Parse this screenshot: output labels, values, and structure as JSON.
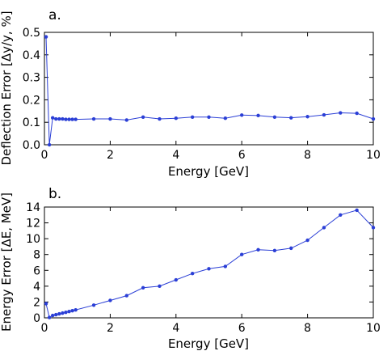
{
  "colors": {
    "series": "#2b3fd6",
    "axes": "#000000"
  },
  "chart_data": [
    {
      "type": "line",
      "panel_label": "a.",
      "xlabel": "Energy [GeV]",
      "ylabel": "Deflection Error [Δy/y, %]",
      "xlim": [
        0,
        10
      ],
      "ylim": [
        0,
        0.5
      ],
      "xticks": [
        0,
        2,
        4,
        6,
        8,
        10
      ],
      "xtick_labels": [
        "0",
        "2",
        "4",
        "6",
        "8",
        "10"
      ],
      "yticks": [
        0.0,
        0.1,
        0.2,
        0.3,
        0.4,
        0.5
      ],
      "ytick_labels": [
        "0.0",
        "0.1",
        "0.2",
        "0.3",
        "0.4",
        "0.5"
      ],
      "grid": false,
      "series": [
        {
          "x": [
            0.05,
            0.15,
            0.25,
            0.35,
            0.45,
            0.55,
            0.65,
            0.75,
            0.85,
            0.95,
            1.5,
            2.0,
            2.5,
            3.0,
            3.5,
            4.0,
            4.5,
            5.0,
            5.5,
            6.0,
            6.5,
            7.0,
            7.5,
            8.0,
            8.5,
            9.0,
            9.5,
            10.0
          ],
          "y": [
            0.48,
            0.0,
            0.12,
            0.115,
            0.115,
            0.115,
            0.113,
            0.113,
            0.113,
            0.113,
            0.115,
            0.115,
            0.11,
            0.123,
            0.115,
            0.118,
            0.123,
            0.123,
            0.118,
            0.132,
            0.13,
            0.123,
            0.12,
            0.125,
            0.133,
            0.142,
            0.14,
            0.115
          ]
        }
      ]
    },
    {
      "type": "line",
      "panel_label": "b.",
      "xlabel": "Energy [GeV]",
      "ylabel": "Energy Error [ΔE, MeV]",
      "xlim": [
        0,
        10
      ],
      "ylim": [
        0,
        14
      ],
      "xticks": [
        0,
        2,
        4,
        6,
        8,
        10
      ],
      "xtick_labels": [
        "0",
        "2",
        "4",
        "6",
        "8",
        "10"
      ],
      "yticks": [
        0,
        2,
        4,
        6,
        8,
        10,
        12,
        14
      ],
      "ytick_labels": [
        "0",
        "2",
        "4",
        "6",
        "8",
        "10",
        "12",
        "14"
      ],
      "grid": false,
      "series": [
        {
          "x": [
            0.05,
            0.15,
            0.25,
            0.35,
            0.45,
            0.55,
            0.65,
            0.75,
            0.85,
            0.95,
            1.5,
            2.0,
            2.5,
            3.0,
            3.5,
            4.0,
            4.5,
            5.0,
            5.5,
            6.0,
            6.5,
            7.0,
            7.5,
            8.0,
            8.5,
            9.0,
            9.5,
            10.0
          ],
          "y": [
            1.8,
            0.05,
            0.3,
            0.4,
            0.5,
            0.6,
            0.7,
            0.8,
            0.9,
            1.0,
            1.6,
            2.2,
            2.8,
            3.8,
            4.0,
            4.8,
            5.6,
            6.2,
            6.5,
            8.0,
            8.6,
            8.5,
            8.8,
            9.8,
            11.4,
            13.0,
            13.6,
            11.4
          ]
        }
      ]
    }
  ]
}
